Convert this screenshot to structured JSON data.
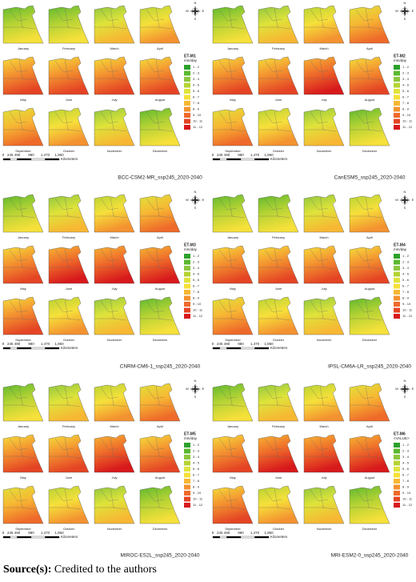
{
  "figure": {
    "months": [
      "January",
      "February",
      "March",
      "April",
      "May",
      "June",
      "July",
      "August",
      "September",
      "October",
      "November",
      "December"
    ],
    "legend_classes": [
      "1 - 2",
      "2 - 3",
      "3 - 4",
      "4 - 5",
      "5 - 6",
      "6 - 7",
      "7 - 8",
      "8 - 9",
      "9 - 10",
      "10 - 11",
      "11 - 12"
    ],
    "scale_labels": [
      "0",
      "245",
      "490",
      "980",
      "1,470",
      "1,960"
    ],
    "scale_unit": "Kilometers",
    "compass": [
      "N",
      "E",
      "S",
      "W"
    ],
    "panels": [
      {
        "model": "BCC-CSM2-MR_ssp245_2020-2040",
        "legend_title": "ET-M1",
        "legend_unit": "mm/day"
      },
      {
        "model": "CanESM5_ssp245_2020-2040",
        "legend_title": "ET-M2",
        "legend_unit": "mm/day"
      },
      {
        "model": "CNRM-CM6-1_ssp245_2020-2040",
        "legend_title": "ET-M3",
        "legend_unit": "mm/day"
      },
      {
        "model": "IPSL-CM6A-LR_ssp245_2020-2040",
        "legend_title": "ET-M4",
        "legend_unit": "mm/day"
      },
      {
        "model": "MIROC-ES2L_ssp245_2020-2040",
        "legend_title": "ET-M5",
        "legend_unit": "mm/day"
      },
      {
        "model": "MRI-ESM2-0_ssp245_2020-2040",
        "legend_title": "ET-M6",
        "legend_unit": "<VALUE>"
      }
    ]
  },
  "source": {
    "label": "Source(s):",
    "text": "Credited to the authors"
  }
}
